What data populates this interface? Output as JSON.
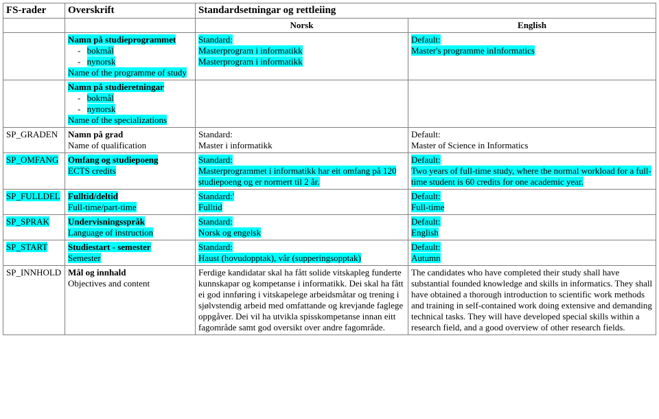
{
  "header": {
    "fs": "FS-rader",
    "overskrift": "Overskrift",
    "standard": "Standardsetningar og rettleiing",
    "norsk": "Norsk",
    "english": "English"
  },
  "rows": {
    "prog": {
      "fs": "",
      "over_title": "Namn på studieprogrammet",
      "over_b1": "bokmål",
      "over_b2": "nynorsk",
      "over_foot": "Name of the programme of  study",
      "norsk_l1": "Standard:",
      "norsk_l2": "Masterprogram i informatikk",
      "norsk_l3": "Masterprogram i informatikk",
      "eng_l1": "Default:",
      "eng_l2": "Master's programme inInformatics"
    },
    "spec": {
      "fs": "",
      "over_title": "Namn på studieretningar",
      "over_b1": "bokmål",
      "over_b2": "nynorsk",
      "over_foot": "Name of the specializations"
    },
    "graden": {
      "fs": "SP_GRADEN",
      "over_l1": "Namn på grad",
      "over_l2": "Name of qualification",
      "norsk_l1": "Standard:",
      "norsk_l2": "Master  i informatikk",
      "eng_l1": "Default:",
      "eng_l2": "Master of Science in Informatics"
    },
    "omfang": {
      "fs": "SP_OMFANG",
      "over_l1": "Omfang og studiepoeng",
      "over_l2": "ECTS credits",
      "norsk_l1": "Standard:",
      "norsk_l2": "Masterprogrammet i informatikk har eit omfang på 120 studiepoeng og er normert til 2 år.",
      "eng_l1": "Default:",
      "eng_l2": "Two years of full-time study, where the normal workload for a full-time student is 60 credits for one academic year."
    },
    "fulldel": {
      "fs": "SP_FULLDEL",
      "over_l1": "Fulltid/deltid",
      "over_l2": "Full-time/part-time",
      "norsk_l1": "Standard:'",
      "norsk_l2": "Fulltid",
      "eng_l1": "Default:",
      "eng_l2": "Full-time"
    },
    "sprak": {
      "fs": "SP_SPRAK",
      "over_l1": "Undervisningsspråk",
      "over_l2": "Language of instruction",
      "norsk_l1": "Standard:",
      "norsk_l2": "Norsk og engelsk",
      "eng_l1": "Default:",
      "eng_l2": "English"
    },
    "start": {
      "fs": "SP_START",
      "over_l1": "Studiestart - semester",
      "over_l2": "Semester",
      "norsk_l1": "Standard:",
      "norsk_l2": "Haust (hovudopptak), vår (supperingsopptak)",
      "eng_l1": "Default:",
      "eng_l2": "Autumn"
    },
    "innhold": {
      "fs": "SP_INNHOLD",
      "over_l1": "Mål og innhald",
      "over_l2": "Objectives and content",
      "norsk": "Ferdige kandidatar skal ha fått solide vitskapleg funderte kunnskapar og kompetanse i informatikk. Dei skal ha fått ei god innføring i vitskapelege arbeidsmåtar og trening i sjølvstendig arbeid med omfattande og krevjande faglege oppgåver. Dei vil ha utvikla spisskompetanse innan eitt fagområde samt god oversikt over andre fagområde.",
      "eng": "The candidates who have completed their study shall have substantial founded knowledge and skills in informatics. They shall have obtained a thorough introduction to scientific work methods and training in self-contained work doing extensive and demanding technical tasks. They will have developed special skills within a research field, and a good overview of other research fields."
    }
  },
  "colors": {
    "highlight": "#00ffff",
    "border": "#808080",
    "text": "#000000",
    "background": "#ffffff"
  }
}
